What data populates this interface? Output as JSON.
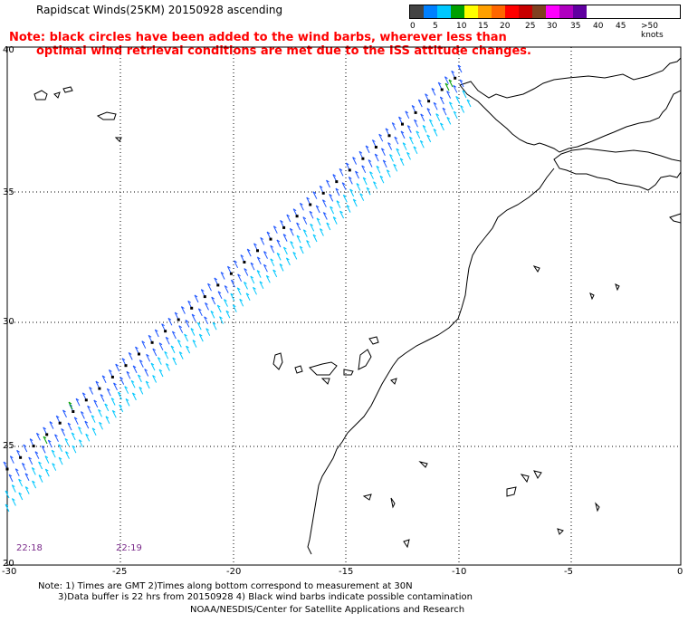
{
  "header": {
    "title": "Rapidscat Winds(25KM) 20150928 ascending",
    "note_line1": "Note: black circles have been added to the wind barbs, wherever less than",
    "note_line2": "optimal wind retrieval conditions are met due to the ISS attitude changes."
  },
  "legend": {
    "colors": [
      "#444444",
      "#0080ff",
      "#00c8ff",
      "#00a000",
      "#ffff00",
      "#ffa000",
      "#ff6600",
      "#ff0000",
      "#c80000",
      "#804020",
      "#ff00ff",
      "#b000c0",
      "#6000a0"
    ],
    "labels": [
      "0",
      "5",
      "10",
      "15",
      "20",
      "25",
      "30",
      "35",
      "40",
      "45",
      ">50 knots"
    ]
  },
  "axes": {
    "x_ticks": [
      "-30",
      "-25",
      "-20",
      "-15",
      "-10",
      "-5",
      "0"
    ],
    "y_ticks": [
      "40",
      "35",
      "30",
      "25",
      "20"
    ]
  },
  "times": [
    "22:18",
    "22:19"
  ],
  "footer": {
    "line1": "Note: 1) Times are GMT 2)Times along bottom correspond to measurement at 30N",
    "line2": "3)Data buffer is 22 hrs from 20150928 4) Black wind barbs indicate possible contamination",
    "line3": "NOAA/NESDIS/Center for Satellite Applications and Research"
  }
}
